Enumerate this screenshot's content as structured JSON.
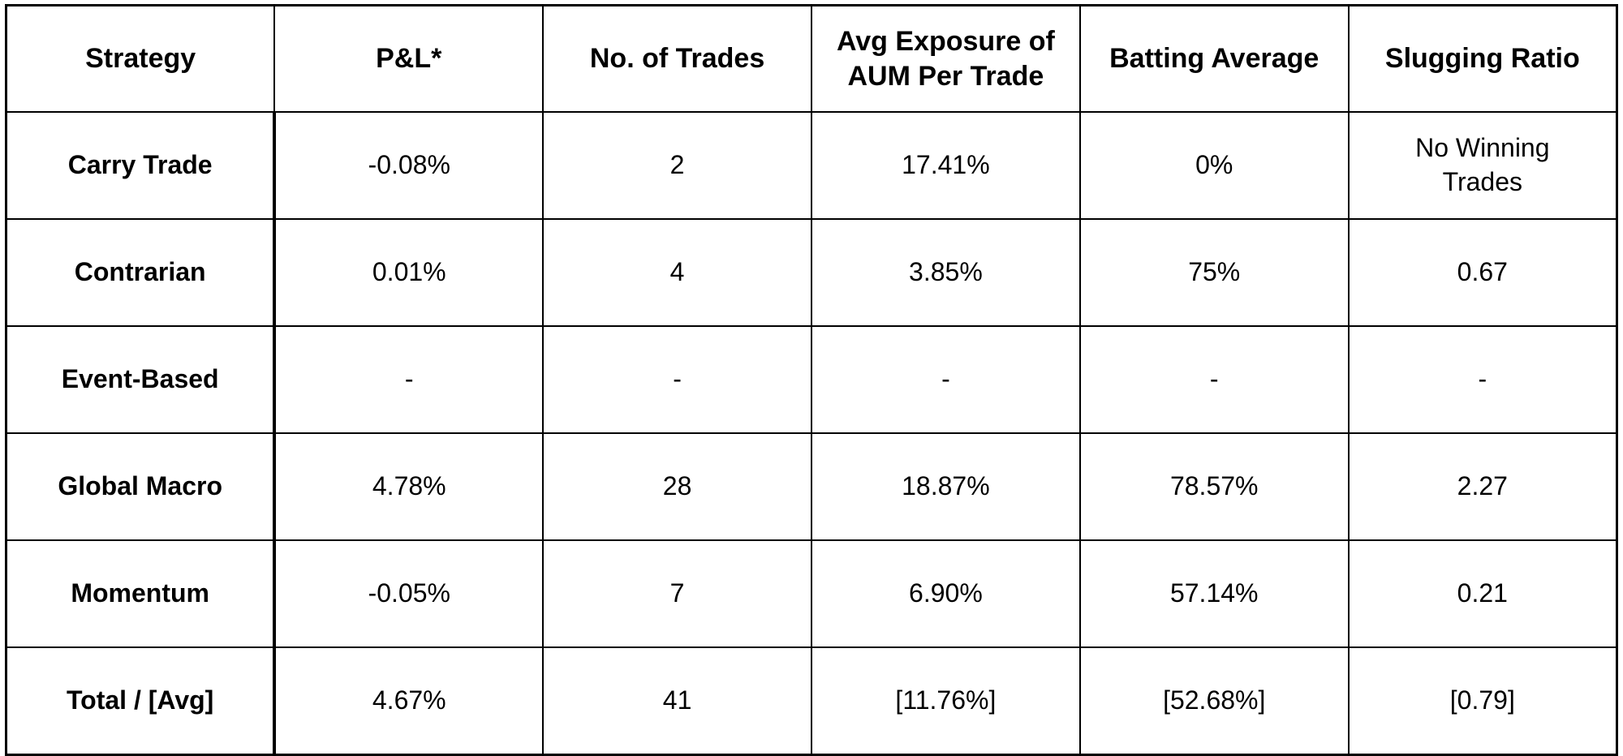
{
  "chart_data": {
    "type": "table",
    "columns": [
      "Strategy",
      "P&L*",
      "No. of Trades",
      "Avg Exposure of\nAUM Per Trade",
      "Batting Average",
      "Slugging Ratio"
    ],
    "rows": [
      [
        "Carry Trade",
        "-0.08%",
        "2",
        "17.41%",
        "0%",
        "No Winning\nTrades"
      ],
      [
        "Contrarian",
        "0.01%",
        "4",
        "3.85%",
        "75%",
        "0.67"
      ],
      [
        "Event-Based",
        "-",
        "-",
        "-",
        "-",
        "-"
      ],
      [
        "Global Macro",
        "4.78%",
        "28",
        "18.87%",
        "78.57%",
        "2.27"
      ],
      [
        "Momentum",
        "-0.05%",
        "7",
        "6.90%",
        "57.14%",
        "0.21"
      ],
      [
        "Total / [Avg]",
        "4.67%",
        "41",
        "[11.76%]",
        "[52.68%]",
        "[0.79]"
      ]
    ],
    "layout": {
      "grid": true,
      "header_divider": "thick",
      "first_column_divider": "thick",
      "text_align": "center"
    }
  },
  "colors": {
    "background": "#ffffff",
    "border": "#000000",
    "text": "#000000"
  }
}
